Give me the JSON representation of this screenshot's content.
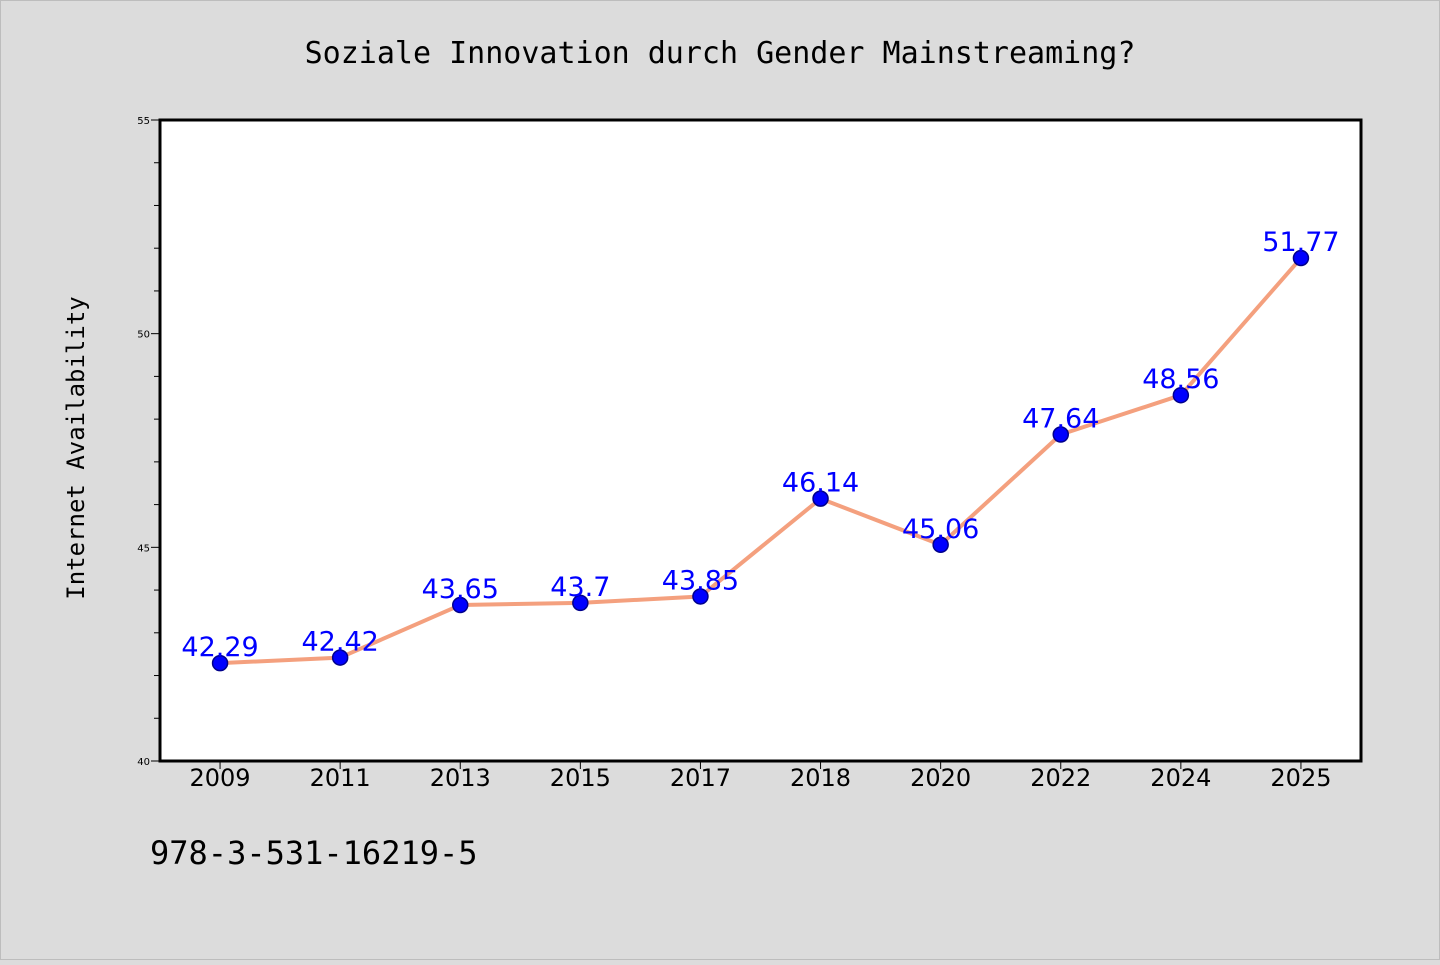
{
  "chart_data": {
    "type": "line",
    "title": "Soziale Innovation durch Gender Mainstreaming?",
    "xlabel": "",
    "ylabel": "Internet Availability",
    "categories": [
      "2009",
      "2011",
      "2013",
      "2015",
      "2017",
      "2018",
      "2020",
      "2022",
      "2024",
      "2025"
    ],
    "series": [
      {
        "values": [
          42.29,
          42.42,
          43.65,
          43.7,
          43.85,
          46.14,
          45.06,
          47.64,
          48.56,
          51.77
        ],
        "data_labels": [
          "42.29",
          "42.42",
          "43.65",
          "43.7",
          "43.85",
          "46.14",
          "45.06",
          "47.64",
          "48.56",
          "51.77"
        ]
      }
    ],
    "ylim": [
      40,
      55
    ],
    "yticks": [
      "40",
      "45",
      "50",
      "55"
    ],
    "grid": false,
    "legend": "none",
    "colors": {
      "line": "#f4a07e",
      "marker": "#0000ff",
      "marker_edge": "#00008b",
      "data_label": "#0000ff",
      "background": "#dcdcdc",
      "plot_background": "#ffffff"
    }
  },
  "footer": {
    "isbn": "978-3-531-16219-5"
  }
}
